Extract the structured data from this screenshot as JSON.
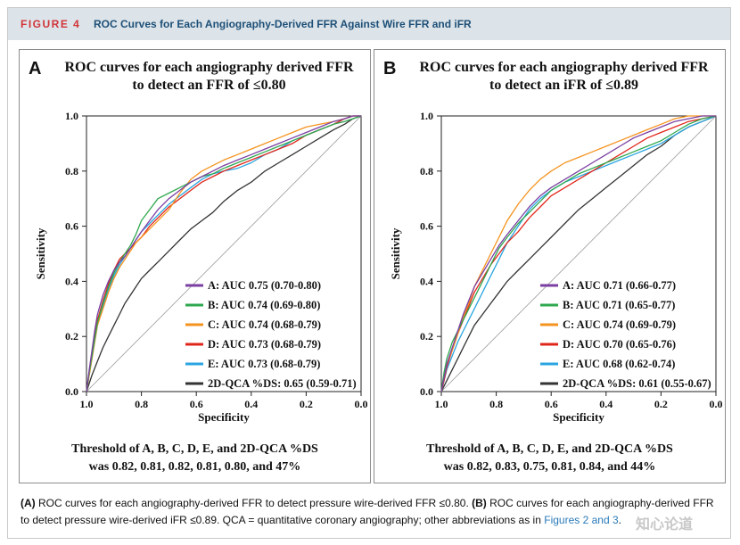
{
  "header": {
    "figure_label": "FIGURE 4",
    "figure_title": "ROC Curves for Each Angiography-Derived FFR Against Wire FFR and iFR"
  },
  "colors": {
    "A": "#7b3fa2",
    "B": "#2fa84f",
    "C": "#f5931e",
    "D": "#e0261b",
    "E": "#2aa5e0",
    "QCA": "#333333",
    "title_blue": "#1d4f77",
    "label_red": "#d0343a",
    "bar_bg": "#dde4e9"
  },
  "panels": [
    {
      "letter": "A",
      "title_line1": "ROC curves for each angiography derived FFR",
      "title_line2": "to detect an FFR of ≤0.80",
      "threshold_line1": "Threshold of A, B, C, D, E, and 2D-QCA %DS",
      "threshold_line2": "was 0.82, 0.81, 0.82, 0.81, 0.80, and 47%"
    },
    {
      "letter": "B",
      "title_line1": "ROC curves for each angiography derived FFR",
      "title_line2": "to detect an iFR of ≤0.89",
      "threshold_line1": "Threshold of A, B, C, D, E, and 2D-QCA %DS",
      "threshold_line2": "was 0.82, 0.83, 0.75, 0.81, 0.84, and 44%"
    }
  ],
  "chart_data": [
    {
      "type": "line",
      "title": "ROC curves for each angiography derived FFR to detect an FFR of ≤0.80",
      "xlabel": "Specificity",
      "ylabel": "Sensitivity",
      "xlim": [
        1.0,
        0.0
      ],
      "ylim": [
        0.0,
        1.0
      ],
      "x_ticks": [
        "1.0",
        "0.8",
        "0.6",
        "0.4",
        "0.2",
        "0.0"
      ],
      "y_ticks": [
        "0.0",
        "0.2",
        "0.4",
        "0.6",
        "0.8",
        "1.0"
      ],
      "legend_position": "bottom-right",
      "reference_line": "diagonal",
      "series": [
        {
          "key": "A",
          "name": "A: AUC 0.75 (0.70-0.80)",
          "x": [
            1.0,
            0.99,
            0.98,
            0.97,
            0.96,
            0.94,
            0.92,
            0.9,
            0.88,
            0.86,
            0.84,
            0.82,
            0.8,
            0.77,
            0.74,
            0.7,
            0.66,
            0.62,
            0.58,
            0.54,
            0.5,
            0.45,
            0.4,
            0.35,
            0.3,
            0.25,
            0.2,
            0.15,
            0.1,
            0.06,
            0.03,
            0.0
          ],
          "y": [
            0.0,
            0.08,
            0.15,
            0.22,
            0.28,
            0.35,
            0.4,
            0.44,
            0.47,
            0.49,
            0.52,
            0.55,
            0.58,
            0.62,
            0.66,
            0.7,
            0.73,
            0.76,
            0.78,
            0.8,
            0.82,
            0.84,
            0.86,
            0.88,
            0.9,
            0.92,
            0.94,
            0.96,
            0.98,
            0.99,
            1.0,
            1.0
          ]
        },
        {
          "key": "B",
          "name": "B: AUC 0.74 (0.69-0.80)",
          "x": [
            1.0,
            0.99,
            0.98,
            0.97,
            0.96,
            0.94,
            0.92,
            0.9,
            0.88,
            0.86,
            0.84,
            0.82,
            0.8,
            0.77,
            0.74,
            0.7,
            0.66,
            0.62,
            0.58,
            0.54,
            0.5,
            0.45,
            0.4,
            0.35,
            0.3,
            0.25,
            0.2,
            0.15,
            0.1,
            0.06,
            0.03,
            0.0
          ],
          "y": [
            0.0,
            0.07,
            0.13,
            0.19,
            0.25,
            0.32,
            0.38,
            0.43,
            0.47,
            0.5,
            0.53,
            0.57,
            0.62,
            0.66,
            0.7,
            0.72,
            0.74,
            0.76,
            0.78,
            0.79,
            0.81,
            0.83,
            0.85,
            0.87,
            0.89,
            0.91,
            0.93,
            0.95,
            0.97,
            0.98,
            0.99,
            1.0
          ]
        },
        {
          "key": "C",
          "name": "C: AUC 0.74 (0.68-0.79)",
          "x": [
            1.0,
            0.99,
            0.98,
            0.97,
            0.96,
            0.94,
            0.92,
            0.9,
            0.88,
            0.86,
            0.84,
            0.82,
            0.8,
            0.77,
            0.74,
            0.7,
            0.66,
            0.62,
            0.58,
            0.54,
            0.5,
            0.45,
            0.4,
            0.35,
            0.3,
            0.25,
            0.2,
            0.15,
            0.1,
            0.06,
            0.03,
            0.0
          ],
          "y": [
            0.0,
            0.06,
            0.12,
            0.18,
            0.24,
            0.3,
            0.36,
            0.41,
            0.45,
            0.48,
            0.51,
            0.54,
            0.56,
            0.59,
            0.62,
            0.66,
            0.72,
            0.77,
            0.8,
            0.82,
            0.84,
            0.86,
            0.88,
            0.9,
            0.92,
            0.94,
            0.96,
            0.97,
            0.98,
            0.99,
            1.0,
            1.0
          ]
        },
        {
          "key": "D",
          "name": "D: AUC 0.73 (0.68-0.79)",
          "x": [
            1.0,
            0.99,
            0.98,
            0.97,
            0.96,
            0.94,
            0.92,
            0.9,
            0.88,
            0.86,
            0.84,
            0.82,
            0.8,
            0.77,
            0.74,
            0.7,
            0.66,
            0.62,
            0.58,
            0.54,
            0.5,
            0.45,
            0.4,
            0.35,
            0.3,
            0.25,
            0.2,
            0.15,
            0.1,
            0.06,
            0.03,
            0.0
          ],
          "y": [
            0.0,
            0.07,
            0.14,
            0.2,
            0.26,
            0.33,
            0.39,
            0.44,
            0.48,
            0.5,
            0.52,
            0.54,
            0.56,
            0.6,
            0.63,
            0.67,
            0.7,
            0.73,
            0.76,
            0.78,
            0.8,
            0.82,
            0.84,
            0.86,
            0.88,
            0.9,
            0.93,
            0.95,
            0.97,
            0.99,
            1.0,
            1.0
          ]
        },
        {
          "key": "E",
          "name": "E: AUC 0.73 (0.68-0.79)",
          "x": [
            1.0,
            0.99,
            0.98,
            0.97,
            0.96,
            0.94,
            0.92,
            0.9,
            0.88,
            0.86,
            0.84,
            0.82,
            0.8,
            0.77,
            0.74,
            0.7,
            0.66,
            0.62,
            0.58,
            0.54,
            0.5,
            0.45,
            0.4,
            0.35,
            0.3,
            0.25,
            0.2,
            0.15,
            0.1,
            0.06,
            0.03,
            0.0
          ],
          "y": [
            0.0,
            0.06,
            0.12,
            0.18,
            0.24,
            0.31,
            0.37,
            0.42,
            0.46,
            0.49,
            0.52,
            0.55,
            0.58,
            0.61,
            0.64,
            0.68,
            0.71,
            0.74,
            0.77,
            0.79,
            0.8,
            0.81,
            0.83,
            0.86,
            0.88,
            0.91,
            0.93,
            0.95,
            0.97,
            0.99,
            1.0,
            1.0
          ]
        },
        {
          "key": "QCA",
          "name": "2D-QCA %DS: 0.65 (0.59-0.71)",
          "x": [
            1.0,
            0.98,
            0.96,
            0.94,
            0.92,
            0.9,
            0.88,
            0.86,
            0.84,
            0.82,
            0.8,
            0.77,
            0.74,
            0.7,
            0.66,
            0.62,
            0.58,
            0.54,
            0.5,
            0.45,
            0.4,
            0.35,
            0.3,
            0.25,
            0.2,
            0.15,
            0.1,
            0.06,
            0.03,
            0.0
          ],
          "y": [
            0.0,
            0.06,
            0.11,
            0.16,
            0.2,
            0.24,
            0.28,
            0.32,
            0.35,
            0.38,
            0.41,
            0.44,
            0.47,
            0.51,
            0.55,
            0.59,
            0.62,
            0.65,
            0.69,
            0.73,
            0.76,
            0.8,
            0.83,
            0.86,
            0.89,
            0.92,
            0.95,
            0.97,
            0.99,
            1.0
          ]
        }
      ]
    },
    {
      "type": "line",
      "title": "ROC curves for each angiography derived FFR to detect an iFR of ≤0.89",
      "xlabel": "Specificity",
      "ylabel": "Sensitivity",
      "xlim": [
        1.0,
        0.0
      ],
      "ylim": [
        0.0,
        1.0
      ],
      "x_ticks": [
        "1.0",
        "0.8",
        "0.6",
        "0.4",
        "0.2",
        "0.0"
      ],
      "y_ticks": [
        "0.0",
        "0.2",
        "0.4",
        "0.6",
        "0.8",
        "1.0"
      ],
      "legend_position": "bottom-right",
      "reference_line": "diagonal",
      "series": [
        {
          "key": "A",
          "name": "A: AUC 0.71 (0.66-0.77)",
          "x": [
            1.0,
            0.99,
            0.98,
            0.96,
            0.94,
            0.92,
            0.9,
            0.88,
            0.85,
            0.82,
            0.79,
            0.76,
            0.72,
            0.68,
            0.64,
            0.6,
            0.55,
            0.5,
            0.45,
            0.4,
            0.35,
            0.3,
            0.25,
            0.2,
            0.15,
            0.1,
            0.05,
            0.0
          ],
          "y": [
            0.0,
            0.05,
            0.1,
            0.16,
            0.22,
            0.28,
            0.33,
            0.38,
            0.43,
            0.48,
            0.53,
            0.57,
            0.62,
            0.67,
            0.71,
            0.74,
            0.77,
            0.8,
            0.83,
            0.86,
            0.89,
            0.92,
            0.94,
            0.96,
            0.98,
            0.99,
            1.0,
            1.0
          ]
        },
        {
          "key": "B",
          "name": "B: AUC 0.71 (0.65-0.77)",
          "x": [
            1.0,
            0.99,
            0.98,
            0.96,
            0.94,
            0.92,
            0.9,
            0.88,
            0.85,
            0.82,
            0.79,
            0.76,
            0.72,
            0.68,
            0.64,
            0.6,
            0.55,
            0.5,
            0.45,
            0.4,
            0.35,
            0.3,
            0.25,
            0.2,
            0.15,
            0.1,
            0.05,
            0.0
          ],
          "y": [
            0.0,
            0.07,
            0.12,
            0.18,
            0.22,
            0.26,
            0.3,
            0.34,
            0.4,
            0.46,
            0.52,
            0.56,
            0.61,
            0.65,
            0.69,
            0.73,
            0.76,
            0.79,
            0.81,
            0.83,
            0.85,
            0.87,
            0.89,
            0.91,
            0.94,
            0.97,
            0.99,
            1.0
          ]
        },
        {
          "key": "C",
          "name": "C: AUC 0.74 (0.69-0.79)",
          "x": [
            1.0,
            0.99,
            0.98,
            0.96,
            0.94,
            0.92,
            0.9,
            0.88,
            0.85,
            0.82,
            0.79,
            0.76,
            0.72,
            0.68,
            0.64,
            0.6,
            0.55,
            0.5,
            0.45,
            0.4,
            0.35,
            0.3,
            0.25,
            0.2,
            0.15,
            0.1,
            0.05,
            0.0
          ],
          "y": [
            0.0,
            0.05,
            0.1,
            0.15,
            0.21,
            0.27,
            0.32,
            0.38,
            0.44,
            0.5,
            0.56,
            0.62,
            0.68,
            0.73,
            0.77,
            0.8,
            0.83,
            0.85,
            0.87,
            0.89,
            0.91,
            0.93,
            0.95,
            0.97,
            0.99,
            1.0,
            1.0,
            1.0
          ]
        },
        {
          "key": "D",
          "name": "D: AUC 0.70 (0.65-0.76)",
          "x": [
            1.0,
            0.99,
            0.98,
            0.96,
            0.94,
            0.92,
            0.9,
            0.88,
            0.85,
            0.82,
            0.79,
            0.76,
            0.72,
            0.68,
            0.64,
            0.6,
            0.55,
            0.5,
            0.45,
            0.4,
            0.35,
            0.3,
            0.25,
            0.2,
            0.15,
            0.1,
            0.05,
            0.0
          ],
          "y": [
            0.0,
            0.04,
            0.09,
            0.15,
            0.21,
            0.26,
            0.31,
            0.36,
            0.41,
            0.46,
            0.5,
            0.54,
            0.58,
            0.63,
            0.67,
            0.71,
            0.74,
            0.77,
            0.8,
            0.83,
            0.86,
            0.89,
            0.92,
            0.94,
            0.96,
            0.98,
            0.99,
            1.0
          ]
        },
        {
          "key": "E",
          "name": "E: AUC 0.68 (0.62-0.74)",
          "x": [
            1.0,
            0.99,
            0.98,
            0.96,
            0.94,
            0.92,
            0.9,
            0.88,
            0.85,
            0.82,
            0.79,
            0.76,
            0.72,
            0.68,
            0.64,
            0.6,
            0.55,
            0.5,
            0.45,
            0.4,
            0.35,
            0.3,
            0.25,
            0.2,
            0.15,
            0.1,
            0.05,
            0.0
          ],
          "y": [
            0.0,
            0.04,
            0.08,
            0.13,
            0.18,
            0.22,
            0.26,
            0.3,
            0.36,
            0.42,
            0.48,
            0.54,
            0.6,
            0.66,
            0.7,
            0.73,
            0.76,
            0.78,
            0.8,
            0.82,
            0.84,
            0.86,
            0.88,
            0.9,
            0.93,
            0.96,
            0.98,
            1.0
          ]
        },
        {
          "key": "QCA",
          "name": "2D-QCA %DS: 0.61 (0.55-0.67)",
          "x": [
            1.0,
            0.98,
            0.96,
            0.94,
            0.92,
            0.9,
            0.88,
            0.85,
            0.82,
            0.79,
            0.76,
            0.72,
            0.68,
            0.64,
            0.6,
            0.55,
            0.5,
            0.45,
            0.4,
            0.35,
            0.3,
            0.25,
            0.2,
            0.15,
            0.1,
            0.05,
            0.0
          ],
          "y": [
            0.0,
            0.04,
            0.08,
            0.12,
            0.16,
            0.2,
            0.24,
            0.28,
            0.32,
            0.36,
            0.4,
            0.44,
            0.48,
            0.52,
            0.56,
            0.61,
            0.66,
            0.7,
            0.74,
            0.78,
            0.82,
            0.86,
            0.89,
            0.93,
            0.96,
            0.98,
            1.0
          ]
        }
      ]
    }
  ],
  "caption": {
    "a_label": "(A)",
    "a_text": " ROC curves for each angiography-derived FFR to detect pressure wire-derived FFR ≤0.80. ",
    "b_label": "(B)",
    "b_text": " ROC curves for each angiography-derived FFR to detect pressure wire-derived iFR ≤0.89. QCA = quantitative coronary angiography; other abbreviations as in ",
    "link_text": "Figures 2 and 3",
    "end": "."
  },
  "watermark": "知心论道"
}
